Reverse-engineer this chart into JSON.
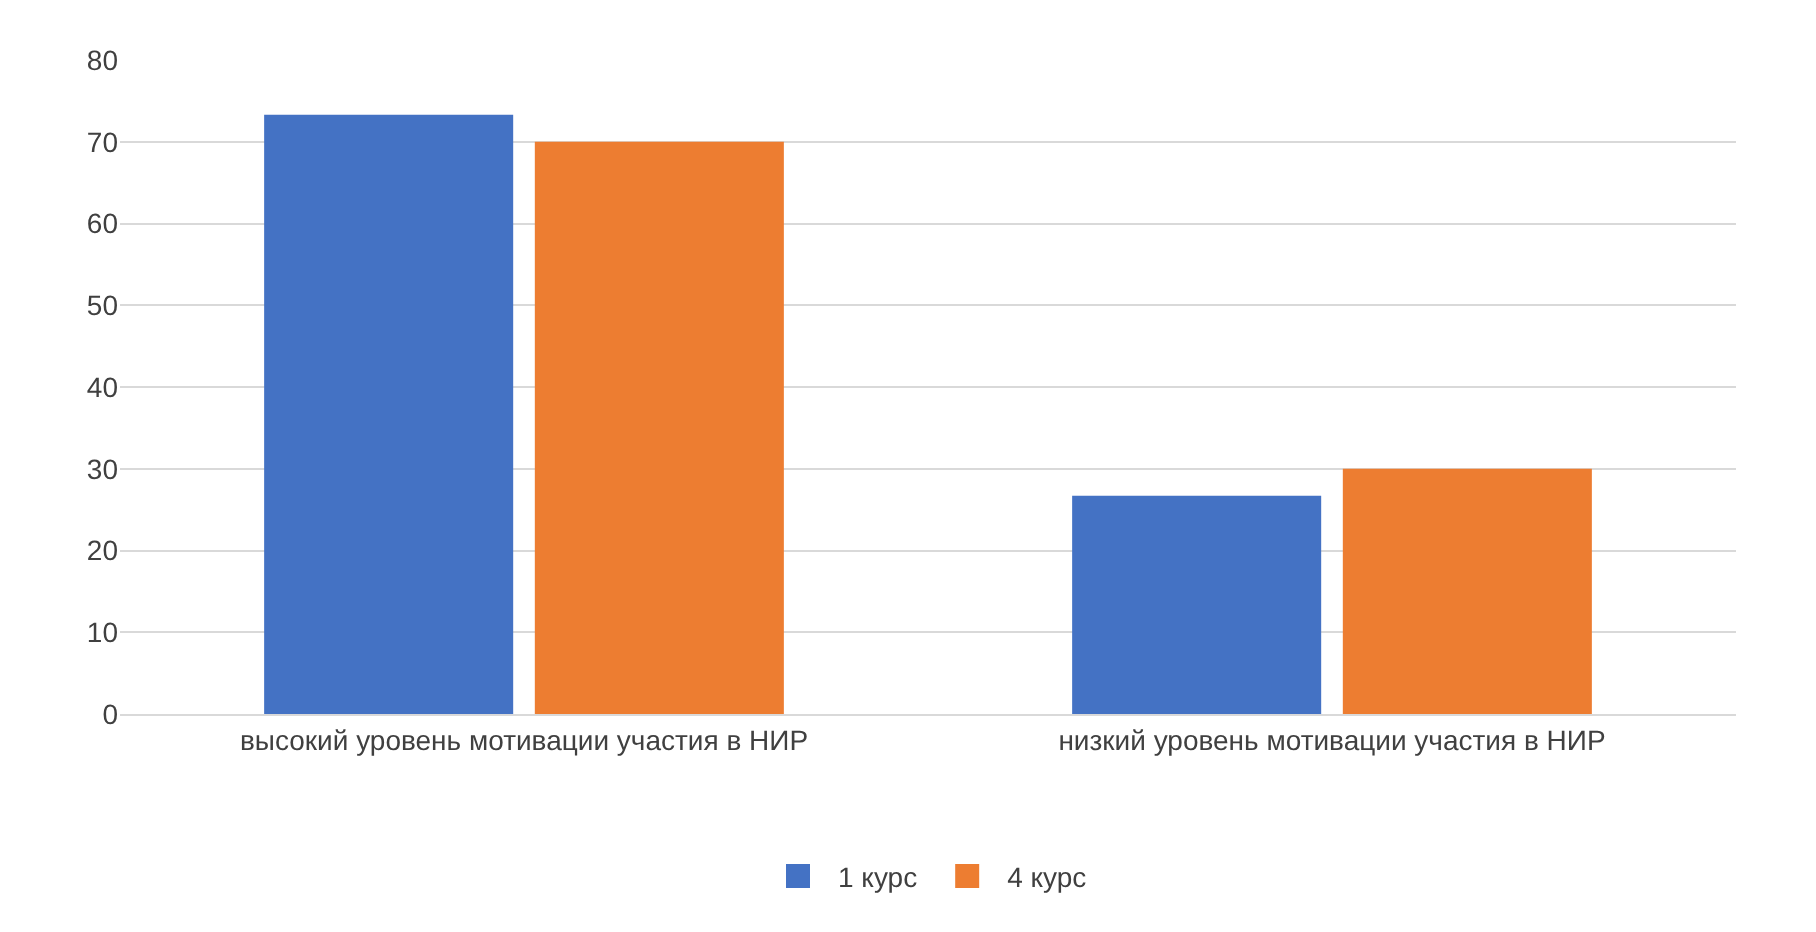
{
  "chart_data": {
    "type": "bar",
    "categories": [
      "высокий уровень мотивации участия в НИР",
      "низкий уровень мотивации участия в НИР"
    ],
    "series": [
      {
        "name": "1 курс",
        "color": "#4472c4",
        "values": [
          73.3,
          26.7
        ]
      },
      {
        "name": "4 курс",
        "color": "#ed7d31",
        "values": [
          70,
          30
        ]
      }
    ],
    "ylim": [
      0,
      80
    ],
    "yticks": [
      0,
      10,
      20,
      30,
      40,
      50,
      60,
      70,
      80
    ],
    "grid": "y",
    "legend": "bottom"
  }
}
